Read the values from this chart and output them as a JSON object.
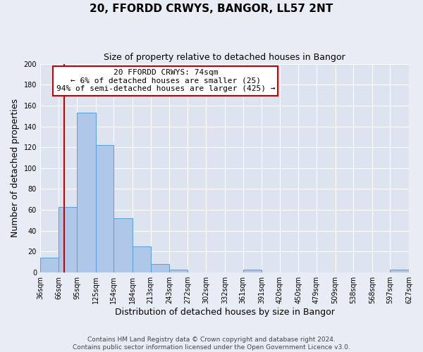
{
  "title": "20, FFORDD CRWYS, BANGOR, LL57 2NT",
  "subtitle": "Size of property relative to detached houses in Bangor",
  "xlabel": "Distribution of detached houses by size in Bangor",
  "ylabel": "Number of detached properties",
  "bin_edges": [
    36,
    66,
    95,
    125,
    154,
    184,
    213,
    243,
    272,
    302,
    332,
    361,
    391,
    420,
    450,
    479,
    509,
    538,
    568,
    597,
    627
  ],
  "bar_heights": [
    14,
    63,
    153,
    122,
    52,
    25,
    8,
    3,
    0,
    0,
    0,
    3,
    0,
    0,
    0,
    0,
    0,
    0,
    0,
    3
  ],
  "bar_color": "#aec6e8",
  "bar_edge_color": "#5a9fd4",
  "background_color": "#dde4f0",
  "fig_background_color": "#e8edf5",
  "grid_color": "#ffffff",
  "red_line_x": 74,
  "red_line_color": "#cc0000",
  "ylim": [
    0,
    200
  ],
  "yticks": [
    0,
    20,
    40,
    60,
    80,
    100,
    120,
    140,
    160,
    180,
    200
  ],
  "annotation_title": "20 FFORDD CRWYS: 74sqm",
  "annotation_line1": "← 6% of detached houses are smaller (25)",
  "annotation_line2": "94% of semi-detached houses are larger (425) →",
  "annotation_box_color": "#ffffff",
  "annotation_box_edge": "#cc0000",
  "footer_line1": "Contains HM Land Registry data © Crown copyright and database right 2024.",
  "footer_line2": "Contains public sector information licensed under the Open Government Licence v3.0.",
  "tick_labels": [
    "36sqm",
    "66sqm",
    "95sqm",
    "125sqm",
    "154sqm",
    "184sqm",
    "213sqm",
    "243sqm",
    "272sqm",
    "302sqm",
    "332sqm",
    "361sqm",
    "391sqm",
    "420sqm",
    "450sqm",
    "479sqm",
    "509sqm",
    "538sqm",
    "568sqm",
    "597sqm",
    "627sqm"
  ],
  "title_fontsize": 11,
  "subtitle_fontsize": 9,
  "ylabel_fontsize": 9,
  "xlabel_fontsize": 9,
  "tick_fontsize": 7,
  "annotation_fontsize": 8,
  "footer_fontsize": 6.5
}
